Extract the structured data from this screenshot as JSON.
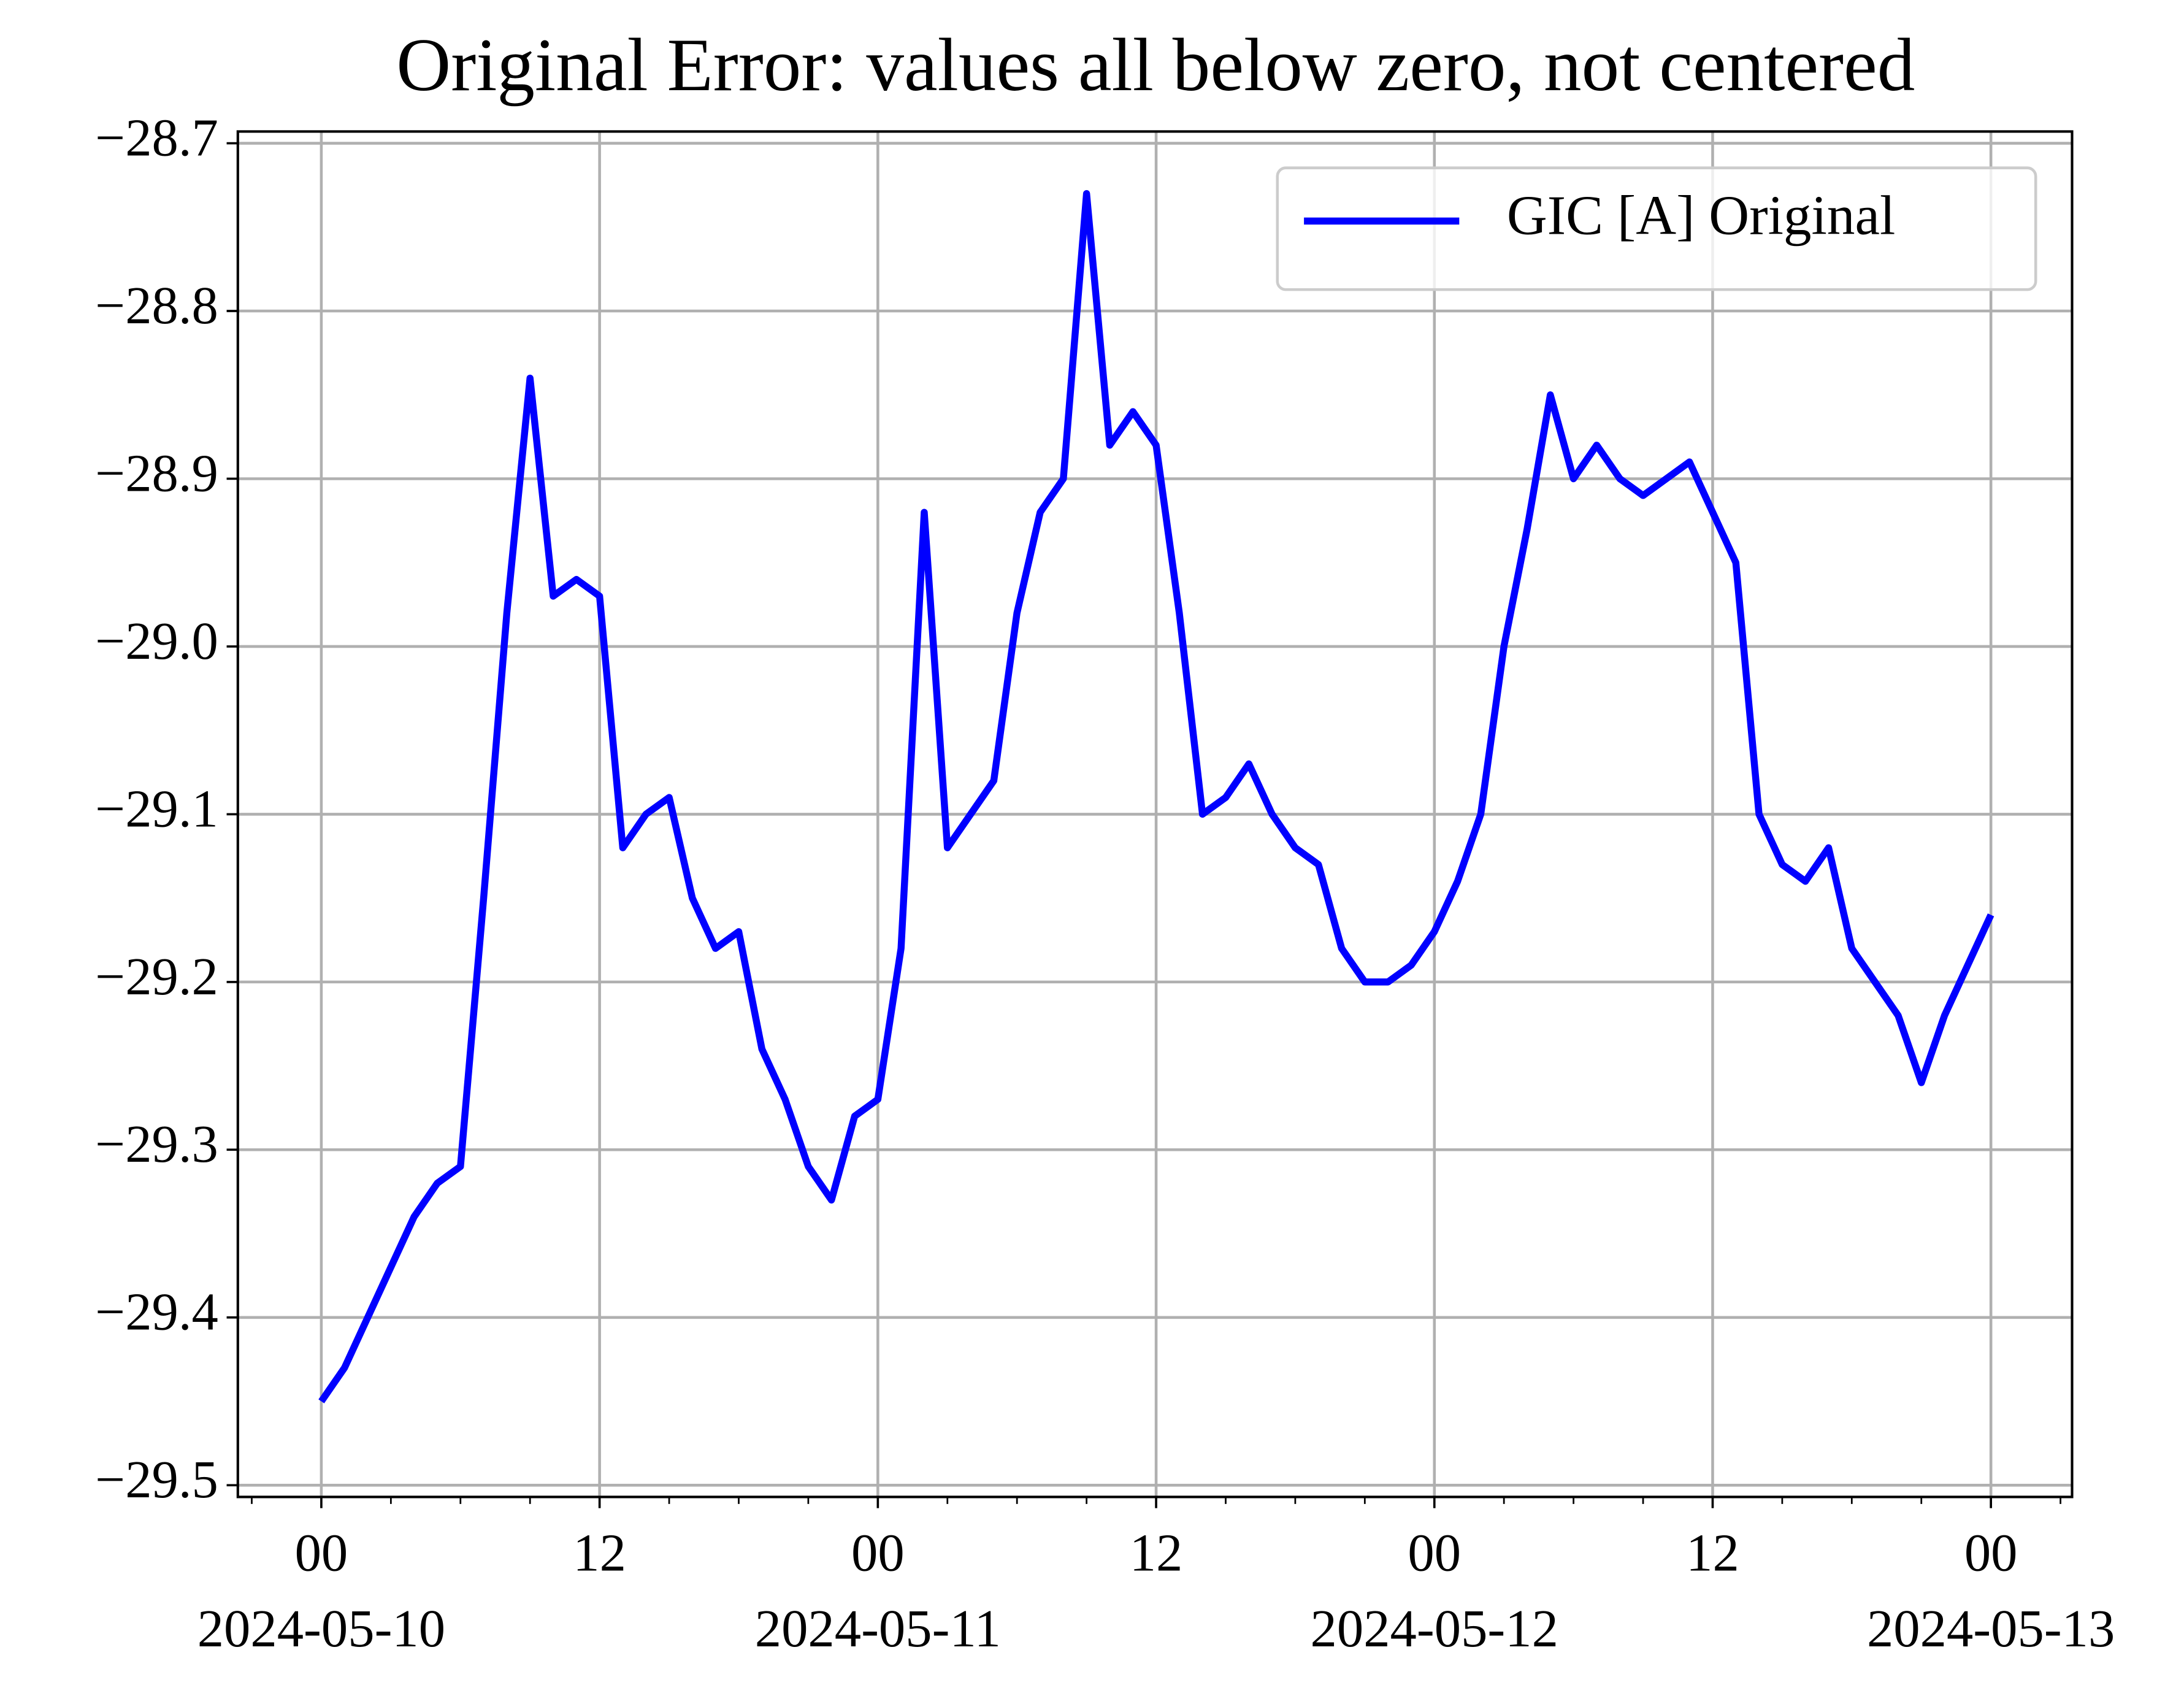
{
  "chart_data": {
    "type": "line",
    "title": "Original Error: values all below zero, not centered",
    "x": [
      "2024-05-10 00:00",
      "2024-05-10 01:00",
      "2024-05-10 02:00",
      "2024-05-10 03:00",
      "2024-05-10 04:00",
      "2024-05-10 05:00",
      "2024-05-10 06:00",
      "2024-05-10 07:00",
      "2024-05-10 08:00",
      "2024-05-10 09:00",
      "2024-05-10 10:00",
      "2024-05-10 11:00",
      "2024-05-10 12:00",
      "2024-05-10 13:00",
      "2024-05-10 14:00",
      "2024-05-10 15:00",
      "2024-05-10 16:00",
      "2024-05-10 17:00",
      "2024-05-10 18:00",
      "2024-05-10 19:00",
      "2024-05-10 20:00",
      "2024-05-10 21:00",
      "2024-05-10 22:00",
      "2024-05-10 23:00",
      "2024-05-11 00:00",
      "2024-05-11 01:00",
      "2024-05-11 02:00",
      "2024-05-11 03:00",
      "2024-05-11 04:00",
      "2024-05-11 05:00",
      "2024-05-11 06:00",
      "2024-05-11 07:00",
      "2024-05-11 08:00",
      "2024-05-11 09:00",
      "2024-05-11 10:00",
      "2024-05-11 11:00",
      "2024-05-11 12:00",
      "2024-05-11 13:00",
      "2024-05-11 14:00",
      "2024-05-11 15:00",
      "2024-05-11 16:00",
      "2024-05-11 17:00",
      "2024-05-11 18:00",
      "2024-05-11 19:00",
      "2024-05-11 20:00",
      "2024-05-11 21:00",
      "2024-05-11 22:00",
      "2024-05-11 23:00",
      "2024-05-12 00:00",
      "2024-05-12 01:00",
      "2024-05-12 02:00",
      "2024-05-12 03:00",
      "2024-05-12 04:00",
      "2024-05-12 05:00",
      "2024-05-12 06:00",
      "2024-05-12 07:00",
      "2024-05-12 08:00",
      "2024-05-12 09:00",
      "2024-05-12 10:00",
      "2024-05-12 11:00",
      "2024-05-12 12:00",
      "2024-05-12 13:00",
      "2024-05-12 14:00",
      "2024-05-12 15:00",
      "2024-05-12 16:00",
      "2024-05-12 17:00",
      "2024-05-12 18:00",
      "2024-05-12 19:00",
      "2024-05-12 20:00",
      "2024-05-12 21:00",
      "2024-05-12 22:00",
      "2024-05-12 23:00",
      "2024-05-13 00:00"
    ],
    "series": [
      {
        "name": "GIC [A] Original",
        "color": "#0000ff",
        "values": [
          -29.45,
          -29.43,
          -29.4,
          -29.37,
          -29.34,
          -29.32,
          -29.31,
          -29.15,
          -28.98,
          -28.84,
          -28.97,
          -28.96,
          -28.97,
          -29.12,
          -29.1,
          -29.09,
          -29.15,
          -29.18,
          -29.17,
          -29.24,
          -29.27,
          -29.31,
          -29.33,
          -29.28,
          -29.27,
          -29.18,
          -28.92,
          -29.12,
          -29.1,
          -29.08,
          -28.98,
          -28.92,
          -28.9,
          -28.73,
          -28.88,
          -28.86,
          -28.88,
          -28.98,
          -29.1,
          -29.09,
          -29.07,
          -29.1,
          -29.12,
          -29.13,
          -29.18,
          -29.2,
          -29.2,
          -29.19,
          -29.17,
          -29.14,
          -29.1,
          -29.0,
          -28.93,
          -28.85,
          -28.9,
          -28.88,
          -28.9,
          -28.91,
          -28.9,
          -28.89,
          -28.92,
          -28.95,
          -29.1,
          -29.13,
          -29.14,
          -29.12,
          -29.18,
          -29.2,
          -29.22,
          -29.26,
          -29.22,
          -29.19,
          -29.16
        ]
      }
    ],
    "xlim": [
      "2024-05-09 20:24",
      "2024-05-13 03:30"
    ],
    "xticks": [
      {
        "value": "2024-05-10 00:00",
        "label": "00",
        "date": "2024-05-10"
      },
      {
        "value": "2024-05-10 12:00",
        "label": "12"
      },
      {
        "value": "2024-05-11 00:00",
        "label": "00",
        "date": "2024-05-11"
      },
      {
        "value": "2024-05-11 12:00",
        "label": "12"
      },
      {
        "value": "2024-05-12 00:00",
        "label": "00",
        "date": "2024-05-12"
      },
      {
        "value": "2024-05-12 12:00",
        "label": "12"
      },
      {
        "value": "2024-05-13 00:00",
        "label": "00",
        "date": "2024-05-13"
      }
    ],
    "xminorticks": [
      "2024-05-09 21:00",
      "2024-05-10 03:00",
      "2024-05-10 06:00",
      "2024-05-10 09:00",
      "2024-05-10 15:00",
      "2024-05-10 18:00",
      "2024-05-10 21:00",
      "2024-05-11 03:00",
      "2024-05-11 06:00",
      "2024-05-11 09:00",
      "2024-05-11 15:00",
      "2024-05-11 18:00",
      "2024-05-11 21:00",
      "2024-05-12 03:00",
      "2024-05-12 06:00",
      "2024-05-12 09:00",
      "2024-05-12 15:00",
      "2024-05-12 18:00",
      "2024-05-12 21:00",
      "2024-05-13 03:00"
    ],
    "ylim": [
      -29.507,
      -28.693
    ],
    "yticks": [
      {
        "value": -28.7,
        "label": "−28.7"
      },
      {
        "value": -28.8,
        "label": "−28.8"
      },
      {
        "value": -28.9,
        "label": "−28.9"
      },
      {
        "value": -29.0,
        "label": "−29.0"
      },
      {
        "value": -29.1,
        "label": "−29.1"
      },
      {
        "value": -29.2,
        "label": "−29.2"
      },
      {
        "value": -29.3,
        "label": "−29.3"
      },
      {
        "value": -29.4,
        "label": "−29.4"
      },
      {
        "value": -29.5,
        "label": "−29.5"
      }
    ],
    "grid": true,
    "legend": "upper right"
  }
}
